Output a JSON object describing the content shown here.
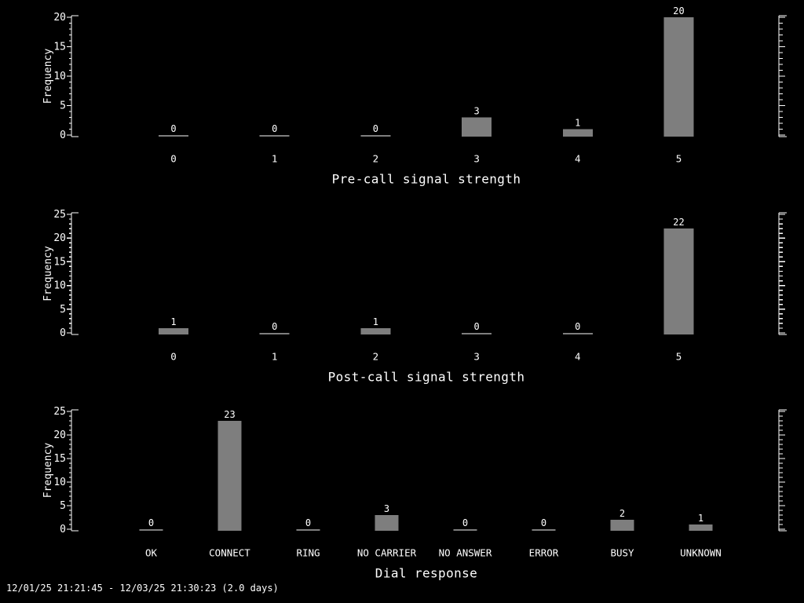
{
  "app": {
    "colors": {
      "background": "#000000",
      "text": "#ffffff",
      "bar": "#7e7e7e"
    }
  },
  "footer": {
    "text": "12/01/25 21:21:45 - 12/03/25 21:30:23 (2.0 days)"
  },
  "chart_data": [
    {
      "type": "bar",
      "title": "Pre-call signal strength",
      "ylabel": "Frequency",
      "categories": [
        "0",
        "1",
        "2",
        "3",
        "4",
        "5"
      ],
      "values": [
        0,
        0,
        0,
        3,
        1,
        20
      ],
      "ylim": [
        0,
        20
      ],
      "ytick_step": 5,
      "minor_tick_step": 1,
      "yticks": [
        "0",
        "5",
        "10",
        "15",
        "20"
      ],
      "grid": "off",
      "legend": "none",
      "value_labels_shown": true
    },
    {
      "type": "bar",
      "title": "Post-call signal strength",
      "ylabel": "Frequency",
      "categories": [
        "0",
        "1",
        "2",
        "3",
        "4",
        "5"
      ],
      "values": [
        1,
        0,
        1,
        0,
        0,
        22
      ],
      "ylim": [
        0,
        25
      ],
      "ytick_step": 5,
      "minor_tick_step": 1,
      "yticks": [
        "0",
        "5",
        "10",
        "15",
        "20",
        "25"
      ],
      "grid": "off",
      "legend": "none",
      "value_labels_shown": true
    },
    {
      "type": "bar",
      "title": "Dial response",
      "ylabel": "Frequency",
      "categories": [
        "OK",
        "CONNECT",
        "RING",
        "NO CARRIER",
        "NO ANSWER",
        "ERROR",
        "BUSY",
        "UNKNOWN"
      ],
      "values": [
        0,
        23,
        0,
        3,
        0,
        0,
        2,
        1
      ],
      "ylim": [
        0,
        25
      ],
      "ytick_step": 5,
      "minor_tick_step": 1,
      "yticks": [
        "0",
        "5",
        "10",
        "15",
        "20",
        "25"
      ],
      "grid": "off",
      "legend": "none",
      "value_labels_shown": true
    }
  ]
}
